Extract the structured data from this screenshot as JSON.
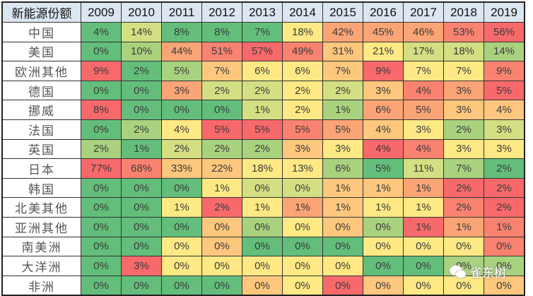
{
  "chart_data": {
    "type": "heatmap",
    "title": "",
    "corner_label": "新能源份额",
    "columns": [
      "2009",
      "2010",
      "2011",
      "2012",
      "2013",
      "2014",
      "2015",
      "2016",
      "2017",
      "2018",
      "2019"
    ],
    "palette": {
      "G": "#63be7b",
      "LG": "#a9d27f",
      "YG": "#d3df82",
      "Y": "#ffe984",
      "LO": "#fdc77d",
      "O": "#fba476",
      "LR": "#f98370",
      "R": "#f8696b"
    },
    "rows": [
      {
        "name": "中国",
        "values": [
          "4%",
          "14%",
          "8%",
          "8%",
          "7%",
          "18%",
          "42%",
          "45%",
          "46%",
          "53%",
          "56%"
        ],
        "colors": [
          "G",
          "YG",
          "G",
          "G",
          "G",
          "Y",
          "O",
          "O",
          "O",
          "LR",
          "R"
        ]
      },
      {
        "name": "美国",
        "values": [
          "0%",
          "10%",
          "44%",
          "51%",
          "57%",
          "49%",
          "31%",
          "21%",
          "17%",
          "18%",
          "14%"
        ],
        "colors": [
          "G",
          "LG",
          "O",
          "LR",
          "R",
          "LR",
          "LO",
          "Y",
          "YG",
          "YG",
          "LG"
        ]
      },
      {
        "name": "欧洲其他",
        "values": [
          "9%",
          "2%",
          "5%",
          "7%",
          "6%",
          "6%",
          "7%",
          "9%",
          "7%",
          "7%",
          "9%"
        ],
        "colors": [
          "R",
          "G",
          "LG",
          "LO",
          "Y",
          "Y",
          "LO",
          "R",
          "Y",
          "Y",
          "LR"
        ]
      },
      {
        "name": "德国",
        "values": [
          "0%",
          "0%",
          "3%",
          "2%",
          "2%",
          "2%",
          "2%",
          "3%",
          "4%",
          "3%",
          "5%"
        ],
        "colors": [
          "G",
          "G",
          "O",
          "YG",
          "YG",
          "Y",
          "YG",
          "LO",
          "LR",
          "O",
          "R"
        ]
      },
      {
        "name": "挪威",
        "values": [
          "8%",
          "0%",
          "0%",
          "0%",
          "1%",
          "2%",
          "1%",
          "6%",
          "5%",
          "3%",
          "4%"
        ],
        "colors": [
          "R",
          "G",
          "G",
          "G",
          "YG",
          "Y",
          "LG",
          "O",
          "O",
          "LO",
          "LO"
        ]
      },
      {
        "name": "法国",
        "values": [
          "0%",
          "2%",
          "4%",
          "5%",
          "5%",
          "5%",
          "5%",
          "4%",
          "3%",
          "2%",
          "3%"
        ],
        "colors": [
          "G",
          "LG",
          "Y",
          "R",
          "R",
          "LR",
          "O",
          "LO",
          "Y",
          "LG",
          "YG"
        ]
      },
      {
        "name": "英国",
        "values": [
          "2%",
          "1%",
          "2%",
          "2%",
          "2%",
          "3%",
          "3%",
          "4%",
          "4%",
          "3%",
          "3%"
        ],
        "colors": [
          "LG",
          "G",
          "YG",
          "LG",
          "LG",
          "LO",
          "Y",
          "R",
          "LR",
          "Y",
          "Y"
        ]
      },
      {
        "name": "日本",
        "values": [
          "77%",
          "68%",
          "33%",
          "22%",
          "18%",
          "13%",
          "6%",
          "5%",
          "11%",
          "7%",
          "2%"
        ],
        "colors": [
          "R",
          "LR",
          "LO",
          "LO",
          "Y",
          "Y",
          "LG",
          "G",
          "YG",
          "LG",
          "G"
        ]
      },
      {
        "name": "韩国",
        "values": [
          "0%",
          "0%",
          "0%",
          "1%",
          "0%",
          "0%",
          "1%",
          "1%",
          "1%",
          "2%",
          "2%"
        ],
        "colors": [
          "G",
          "G",
          "G",
          "Y",
          "YG",
          "YG",
          "LO",
          "LO",
          "O",
          "R",
          "R"
        ]
      },
      {
        "name": "北美其他",
        "values": [
          "0%",
          "0%",
          "1%",
          "2%",
          "1%",
          "1%",
          "1%",
          "1%",
          "1%",
          "2%",
          "2%"
        ],
        "colors": [
          "G",
          "G",
          "Y",
          "R",
          "Y",
          "O",
          "LO",
          "Y",
          "Y",
          "LR",
          "R"
        ]
      },
      {
        "name": "亚洲其他",
        "values": [
          "0%",
          "0%",
          "0%",
          "0%",
          "0%",
          "0%",
          "0%",
          "0%",
          "1%",
          "1%",
          "1%"
        ],
        "colors": [
          "G",
          "G",
          "G",
          "LO",
          "LG",
          "Y",
          "LO",
          "LG",
          "R",
          "O",
          "LR"
        ]
      },
      {
        "name": "南美洲",
        "values": [
          "0%",
          "0%",
          "0%",
          "0%",
          "0%",
          "0%",
          "0%",
          "0%",
          "0%",
          "0%",
          "0%"
        ],
        "colors": [
          "G",
          "G",
          "Y",
          "LO",
          "G",
          "G",
          "G",
          "Y",
          "Y",
          "Y",
          "LR"
        ]
      },
      {
        "name": "大洋洲",
        "values": [
          "0%",
          "3%",
          "0%",
          "0%",
          "0%",
          "0%",
          "0%",
          "0%",
          "0%",
          "0%",
          "0%"
        ],
        "colors": [
          "G",
          "R",
          "Y",
          "Y",
          "Y",
          "Y",
          "Y",
          "G",
          "G",
          "LG",
          "LG"
        ]
      },
      {
        "name": "非洲",
        "values": [
          "0%",
          "0%",
          "0%",
          "0%",
          "0%",
          "0%",
          "0%",
          "0%",
          "0%",
          "0%",
          "0%"
        ],
        "colors": [
          "G",
          "G",
          "G",
          "G",
          "LO",
          "Y",
          "R",
          "LO",
          "Y",
          "Y",
          "LO"
        ]
      }
    ]
  },
  "watermark": {
    "icon": "wechat-icon",
    "text": "雀东树"
  }
}
